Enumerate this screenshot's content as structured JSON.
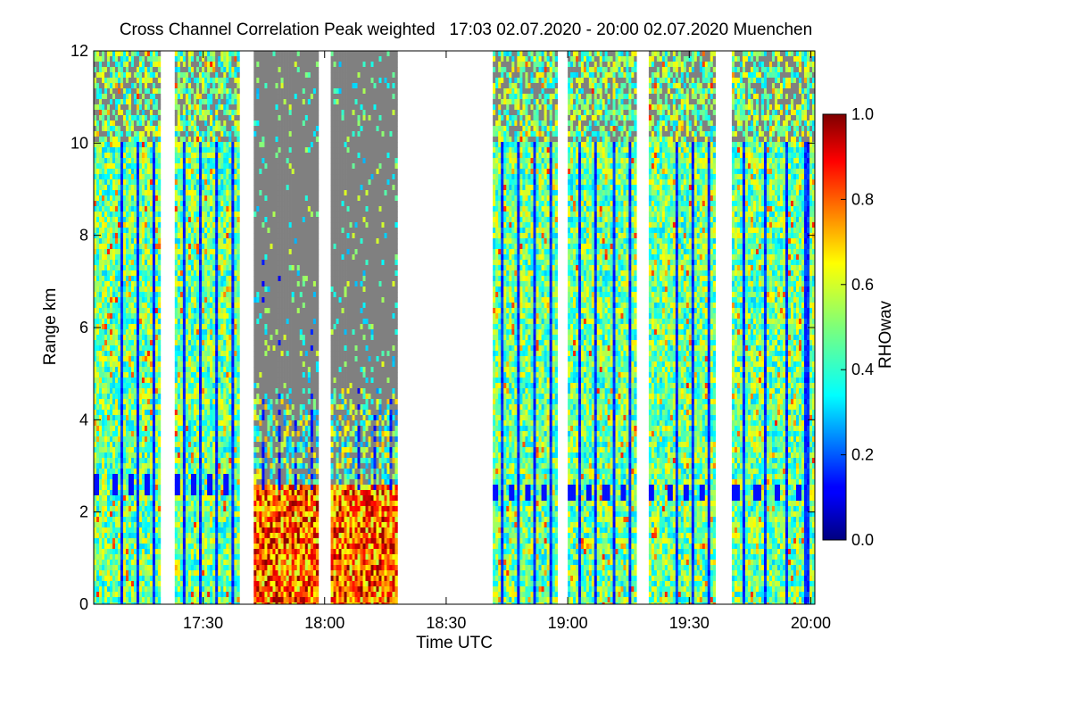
{
  "chart_data": {
    "type": "heatmap",
    "title": "Cross Channel Correlation Peak weighted   17:03 02.07.2020 - 20:00 02.07.2020 Muenchen",
    "xlabel": "Time UTC",
    "ylabel": "Range km",
    "colorbar_label": "RHOwav",
    "x_range_minutes_utc": [
      1023,
      1201
    ],
    "y_range_km": [
      0,
      12
    ],
    "x_ticks": [
      {
        "minute": 1050,
        "label": "17:30"
      },
      {
        "minute": 1080,
        "label": "18:00"
      },
      {
        "minute": 1110,
        "label": "18:30"
      },
      {
        "minute": 1140,
        "label": "19:00"
      },
      {
        "minute": 1170,
        "label": "19:30"
      },
      {
        "minute": 1200,
        "label": "20:00"
      }
    ],
    "y_ticks": [
      {
        "value": 0,
        "label": "0"
      },
      {
        "value": 2,
        "label": "2"
      },
      {
        "value": 4,
        "label": "4"
      },
      {
        "value": 6,
        "label": "6"
      },
      {
        "value": 8,
        "label": "8"
      },
      {
        "value": 10,
        "label": "10"
      },
      {
        "value": 12,
        "label": "12"
      }
    ],
    "colorbar": {
      "colormap": "jet",
      "range": [
        0.0,
        1.0
      ],
      "ticks": [
        {
          "value": 0.0,
          "label": "0.0"
        },
        {
          "value": 0.2,
          "label": "0.2"
        },
        {
          "value": 0.4,
          "label": "0.4"
        },
        {
          "value": 0.6,
          "label": "0.6"
        },
        {
          "value": 0.8,
          "label": "0.8"
        },
        {
          "value": 1.0,
          "label": "1.0"
        }
      ]
    },
    "no_signal_color": "#808080",
    "data_gap_color": "#ffffff",
    "segments": [
      {
        "start_min": 1023.0,
        "end_min": 1039.5,
        "sky": "clear",
        "dark_band_km": 2.6
      },
      {
        "start_min": 1043.0,
        "end_min": 1059.0,
        "sky": "clear",
        "dark_band_km": 2.6
      },
      {
        "start_min": 1062.5,
        "end_min": 1078.5,
        "sky": "cloudy_lowlevel",
        "dark_band_km": null
      },
      {
        "start_min": 1081.5,
        "end_min": 1098.0,
        "sky": "cloudy_lowlevel",
        "dark_band_km": null
      },
      {
        "start_min": 1121.5,
        "end_min": 1137.5,
        "sky": "clear",
        "dark_band_km": 2.4
      },
      {
        "start_min": 1140.0,
        "end_min": 1157.0,
        "sky": "clear",
        "dark_band_km": 2.4
      },
      {
        "start_min": 1160.0,
        "end_min": 1176.5,
        "sky": "clear",
        "dark_band_km": 2.4
      },
      {
        "start_min": 1180.5,
        "end_min": 1201.0,
        "sky": "clear",
        "dark_band_km": 2.4
      }
    ]
  },
  "colors": {
    "background": "#ffffff",
    "axis": "#000000",
    "no_signal": "#808080"
  }
}
